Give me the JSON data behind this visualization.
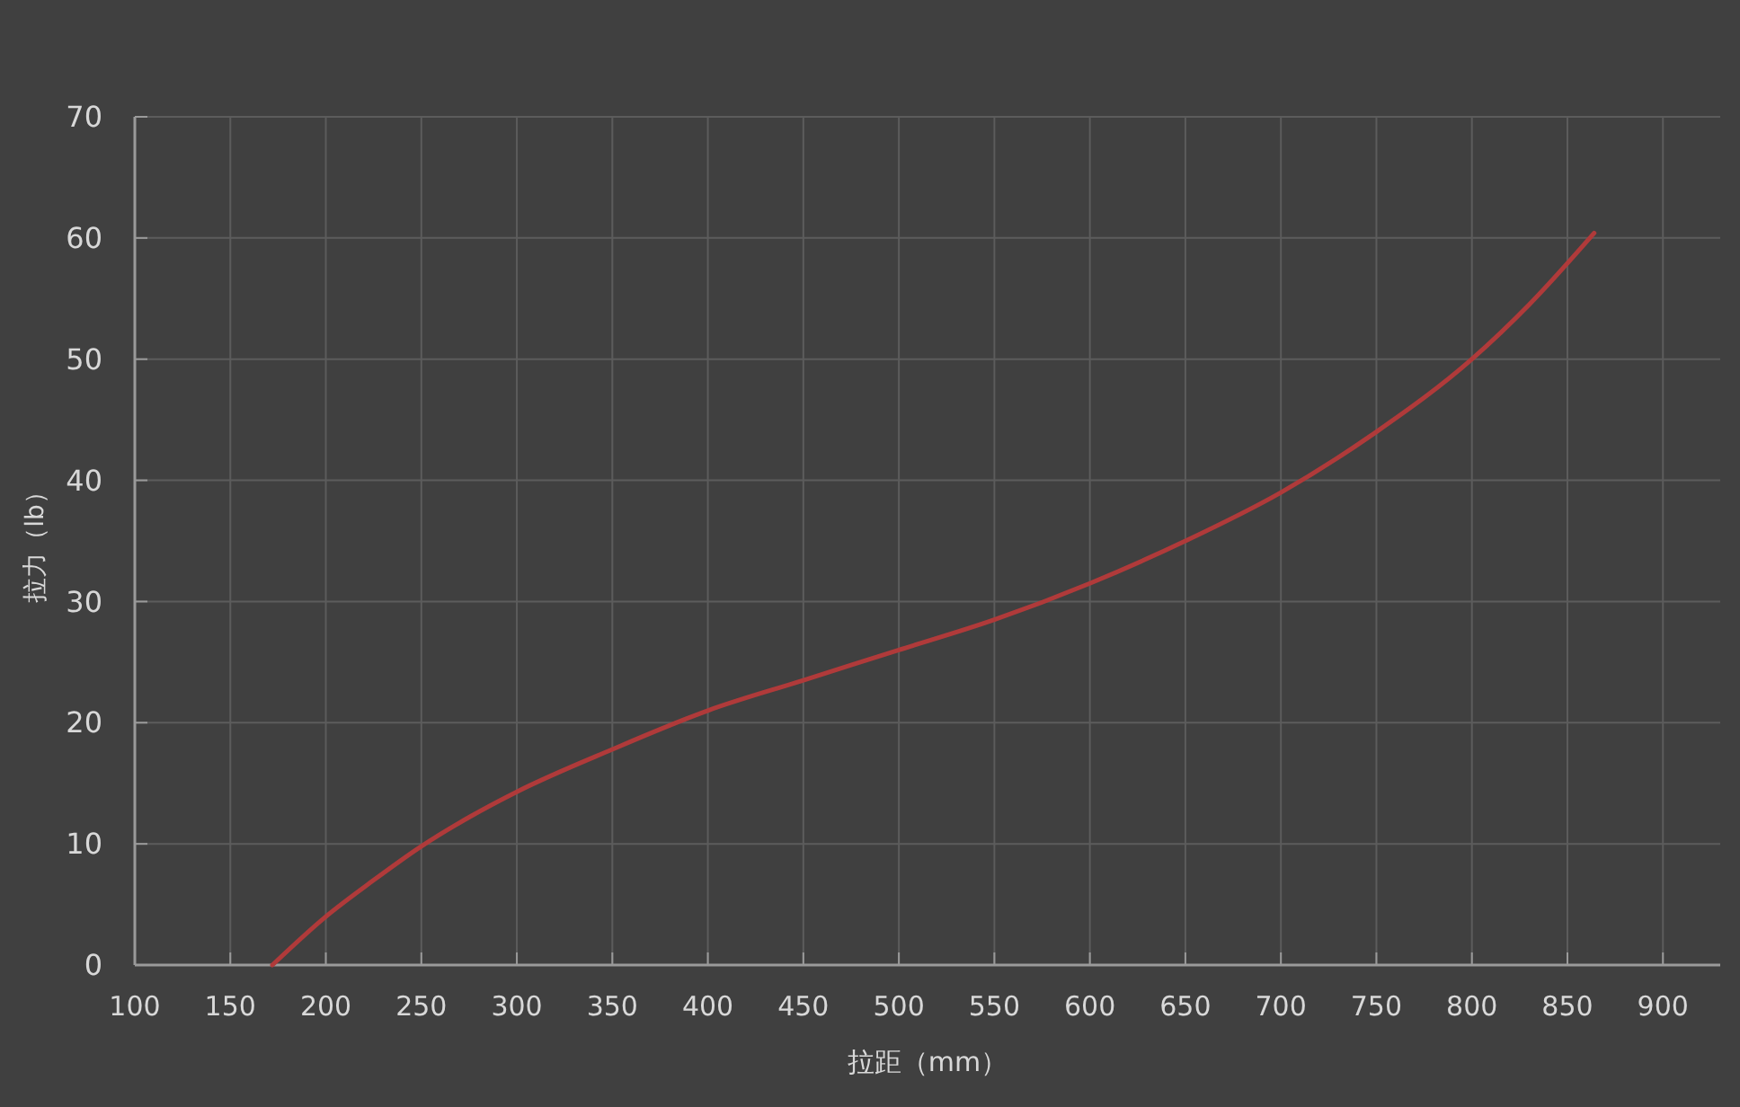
{
  "chart_data": {
    "type": "line",
    "xlabel": "拉距（mm）",
    "ylabel": "拉力（lb）",
    "xlim": [
      100,
      930
    ],
    "xticks": [
      100,
      150,
      200,
      250,
      300,
      350,
      400,
      450,
      500,
      550,
      600,
      650,
      700,
      750,
      800,
      850,
      900
    ],
    "ylim": [
      0,
      70
    ],
    "yticks": [
      0,
      10,
      20,
      30,
      40,
      50,
      60,
      70
    ],
    "grid": true,
    "series": [
      {
        "color": "#b03a3a",
        "x": [
          172,
          200,
          225,
          250,
          275,
          300,
          350,
          400,
          450,
          500,
          550,
          600,
          650,
          700,
          750,
          800,
          830,
          864
        ],
        "values": [
          0,
          4,
          7,
          9.8,
          12.2,
          14.3,
          17.8,
          21,
          23.5,
          26,
          28.5,
          31.5,
          35,
          39,
          44,
          50,
          54.5,
          60.4
        ]
      }
    ]
  }
}
